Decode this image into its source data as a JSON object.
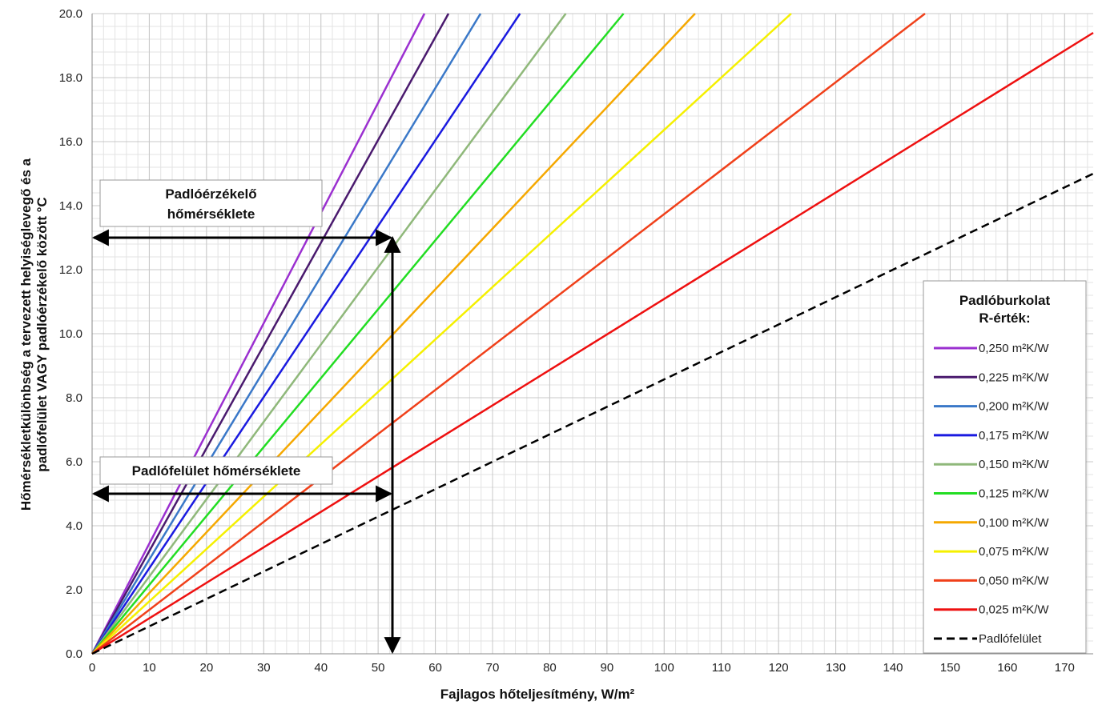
{
  "chart_data": {
    "type": "line",
    "xlabel": "Fajlagos hőteljesítmény, W/m²",
    "ylabel_line1": "Hőmérsékletkülönbség a tervezett helyiséglevegő és a",
    "ylabel_line2": "padlófelület VAGY padlóérzékelő között °C",
    "xlim": [
      0,
      175
    ],
    "ylim": [
      0,
      20
    ],
    "x_ticks": [
      "0",
      "10",
      "20",
      "30",
      "40",
      "50",
      "60",
      "70",
      "80",
      "90",
      "100",
      "110",
      "120",
      "130",
      "140",
      "150",
      "160",
      "170"
    ],
    "y_ticks": [
      "0.0",
      "2.0",
      "4.0",
      "6.0",
      "8.0",
      "10.0",
      "12.0",
      "14.0",
      "16.0",
      "18.0",
      "20.0"
    ],
    "x_tick_values": [
      0,
      10,
      20,
      30,
      40,
      50,
      60,
      70,
      80,
      90,
      100,
      110,
      120,
      130,
      140,
      150,
      160,
      170
    ],
    "y_tick_values": [
      0,
      2,
      4,
      6,
      8,
      10,
      12,
      14,
      16,
      18,
      20
    ],
    "grid": true,
    "legend_position": "right",
    "legend_title_line1": "Padlóburkolat",
    "legend_title_line2": "R-érték:",
    "series": [
      {
        "name": "0,250 m²K/W",
        "color": "#9b30d0",
        "x": [
          0,
          58.1
        ],
        "y": [
          0,
          20
        ]
      },
      {
        "name": "0,225 m²K/W",
        "color": "#4a1a6e",
        "x": [
          0,
          62.3
        ],
        "y": [
          0,
          20
        ]
      },
      {
        "name": "0,200 m²K/W",
        "color": "#3a78c8",
        "x": [
          0,
          67.9
        ],
        "y": [
          0,
          20
        ]
      },
      {
        "name": "0,175 m²K/W",
        "color": "#1a1ae0",
        "x": [
          0,
          74.8
        ],
        "y": [
          0,
          20
        ]
      },
      {
        "name": "0,150 m²K/W",
        "color": "#8fb87a",
        "x": [
          0,
          82.8
        ],
        "y": [
          0,
          20
        ]
      },
      {
        "name": "0,125 m²K/W",
        "color": "#22dd22",
        "x": [
          0,
          92.9
        ],
        "y": [
          0,
          20
        ]
      },
      {
        "name": "0,100 m²K/W",
        "color": "#f5a800",
        "x": [
          0,
          105.4
        ],
        "y": [
          0,
          20
        ]
      },
      {
        "name": "0,075 m²K/W",
        "color": "#f5f000",
        "x": [
          0,
          122.2
        ],
        "y": [
          0,
          20
        ]
      },
      {
        "name": "0,050 m²K/W",
        "color": "#f0401a",
        "x": [
          0,
          145.6
        ],
        "y": [
          0,
          20
        ]
      },
      {
        "name": "0,025 m²K/W",
        "color": "#ee1010",
        "x": [
          0,
          175
        ],
        "y": [
          0,
          19.4
        ]
      },
      {
        "name": "Padlófelület",
        "color": "#000000",
        "dashed": true,
        "x": [
          0,
          175
        ],
        "y": [
          0,
          15.0
        ]
      }
    ],
    "annotations": [
      {
        "lines": [
          "Padlóérzékelő",
          "hőmérséklete"
        ],
        "target_y": 13.0
      },
      {
        "lines": [
          "Padlófelület hőmérséklete"
        ],
        "target_y": 5.0
      }
    ],
    "reference_x": 52.5
  }
}
